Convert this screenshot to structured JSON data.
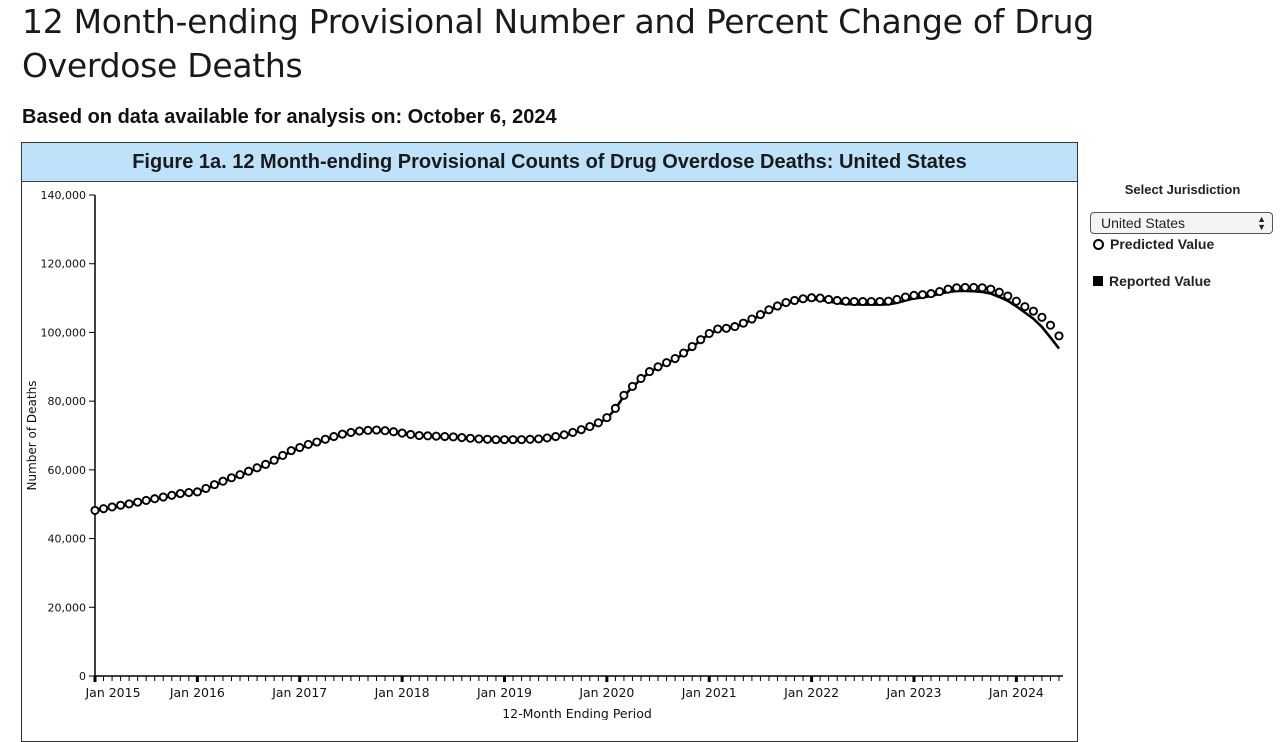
{
  "page": {
    "title": "12 Month-ending Provisional Number and Percent Change of Drug Overdose Deaths",
    "subtitle": "Based on data available for analysis on: October 6, 2024"
  },
  "figure": {
    "header": "Figure 1a. 12 Month-ending Provisional Counts of Drug Overdose Deaths: United States"
  },
  "controls": {
    "jurisdiction_label": "Select Jurisdiction",
    "jurisdiction_value": "United States",
    "legend_predicted": "Predicted Value",
    "legend_reported": "Reported Value"
  },
  "colors": {
    "header_bg": "#bfe2fb",
    "series": "#000000"
  },
  "chart_data": {
    "type": "line",
    "title": "Figure 1a. 12 Month-ending Provisional Counts of Drug Overdose Deaths: United States",
    "xlabel": "12-Month Ending Period",
    "ylabel": "Number of Deaths",
    "ylim": [
      0,
      140000
    ],
    "yticks": [
      0,
      20000,
      40000,
      60000,
      80000,
      100000,
      120000,
      140000
    ],
    "ytick_labels": [
      "0",
      "20,000",
      "40,000",
      "60,000",
      "80,000",
      "100,000",
      "120,000",
      "140,000"
    ],
    "xtick_labels": [
      "Jan 2015",
      "Jan 2016",
      "Jan 2017",
      "Jan 2018",
      "Jan 2019",
      "Jan 2020",
      "Jan 2021",
      "Jan 2022",
      "Jan 2023",
      "Jan 2024"
    ],
    "start_period": "Jan 2015",
    "end_period": "Apr 2024",
    "grid": false,
    "series": [
      {
        "name": "Predicted Value",
        "marker": "open-circle",
        "values": [
          48200,
          48700,
          49200,
          49700,
          50100,
          50600,
          51100,
          51600,
          52100,
          52600,
          53100,
          53400,
          53600,
          54600,
          55700,
          56700,
          57700,
          58600,
          59600,
          60600,
          61600,
          62800,
          64200,
          65600,
          66500,
          67400,
          68100,
          68900,
          69700,
          70400,
          70900,
          71300,
          71500,
          71600,
          71400,
          71100,
          70700,
          70300,
          70000,
          69900,
          69800,
          69700,
          69600,
          69400,
          69200,
          69000,
          68900,
          68800,
          68800,
          68800,
          68800,
          68900,
          69000,
          69300,
          69700,
          70200,
          70900,
          71700,
          72600,
          73700,
          75200,
          77900,
          81700,
          84300,
          86600,
          88600,
          90000,
          91200,
          92400,
          94000,
          95900,
          97900,
          99700,
          101000,
          101200,
          101700,
          102700,
          103900,
          105200,
          106600,
          107700,
          108700,
          109300,
          109800,
          110100,
          110000,
          109600,
          109300,
          109100,
          109000,
          109000,
          109000,
          109000,
          109100,
          109600,
          110300,
          110800,
          111000,
          111300,
          111900,
          112600,
          113000,
          113100,
          113100,
          113000,
          112600,
          111700,
          110600,
          109100,
          107500,
          106200,
          104400,
          102100,
          99000
        ]
      },
      {
        "name": "Reported Value",
        "marker": "line",
        "values": [
          48000,
          48500,
          49000,
          49500,
          49900,
          50400,
          50900,
          51400,
          51900,
          52400,
          52900,
          53200,
          53400,
          54400,
          55500,
          56500,
          57500,
          58400,
          59400,
          60400,
          61400,
          62600,
          64000,
          65400,
          66300,
          67200,
          67900,
          68700,
          69500,
          70200,
          70700,
          71100,
          71300,
          71400,
          71200,
          70900,
          70500,
          70100,
          69800,
          69700,
          69600,
          69500,
          69400,
          69200,
          69000,
          68800,
          68700,
          68600,
          68600,
          68600,
          68600,
          68700,
          68800,
          69100,
          69500,
          70000,
          70700,
          71500,
          72400,
          73500,
          75000,
          77700,
          81500,
          84100,
          86400,
          88400,
          89800,
          91000,
          92200,
          93800,
          95700,
          97700,
          99500,
          100800,
          101000,
          101500,
          102500,
          103700,
          105000,
          106400,
          107500,
          108500,
          109100,
          109500,
          109700,
          109500,
          109000,
          108600,
          108300,
          108200,
          108100,
          108100,
          108100,
          108200,
          108600,
          109300,
          109900,
          110200,
          110600,
          111200,
          111800,
          112100,
          112100,
          112000,
          111800,
          111300,
          110300,
          109200,
          107600,
          105800,
          104000,
          101600,
          98500,
          95300
        ]
      }
    ]
  }
}
